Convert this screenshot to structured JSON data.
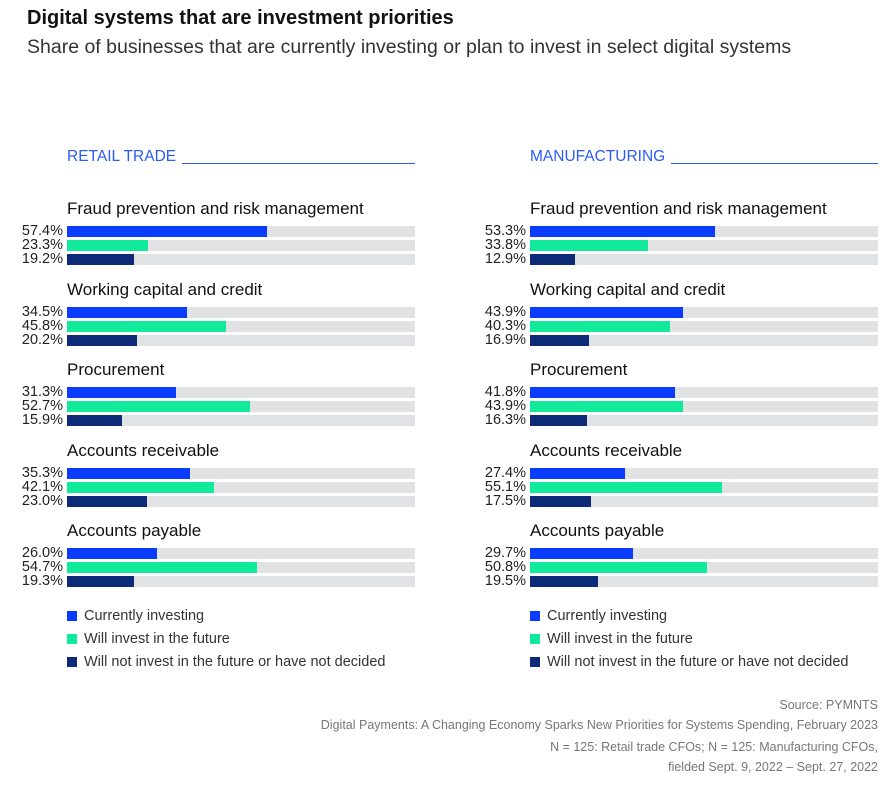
{
  "title": "Digital systems that are investment priorities",
  "subtitle": "Share of businesses that are currently investing or plan to invest in select digital systems",
  "colors": {
    "currently": "#0a3cff",
    "future": "#11ea9a",
    "not": "#0c2a78",
    "track": "#e1e2e4",
    "accent": "#2a5bf5"
  },
  "chart_data": [
    {
      "type": "bar",
      "title": "RETAIL TRADE",
      "categories": [
        "Fraud prevention and risk management",
        "Working capital and credit",
        "Procurement",
        "Accounts receivable",
        "Accounts payable"
      ],
      "xlim": [
        0,
        100
      ],
      "series": [
        {
          "name": "Currently investing",
          "values": [
            57.4,
            34.5,
            31.3,
            35.3,
            26.0
          ],
          "labels": [
            "57.4%",
            "34.5%",
            "31.3%",
            "35.3%",
            "26.0%"
          ]
        },
        {
          "name": "Will invest in the future",
          "values": [
            23.3,
            45.8,
            52.7,
            42.1,
            54.7
          ],
          "labels": [
            "23.3%",
            "45.8%",
            "52.7%",
            "42.1%",
            "54.7%"
          ]
        },
        {
          "name": "Will not invest in the future or have not decided",
          "values": [
            19.2,
            20.2,
            15.9,
            23.0,
            19.3
          ],
          "labels": [
            "19.2%",
            "20.2%",
            "15.9%",
            "23.0%",
            "19.3%"
          ]
        }
      ]
    },
    {
      "type": "bar",
      "title": "MANUFACTURING",
      "categories": [
        "Fraud prevention and risk management",
        "Working capital and credit",
        "Procurement",
        "Accounts receivable",
        "Accounts payable"
      ],
      "xlim": [
        0,
        100
      ],
      "series": [
        {
          "name": "Currently investing",
          "values": [
            53.3,
            43.9,
            41.8,
            27.4,
            29.7
          ],
          "labels": [
            "53.3%",
            "43.9%",
            "41.8%",
            "27.4%",
            "29.7%"
          ]
        },
        {
          "name": "Will invest in the future",
          "values": [
            33.8,
            40.3,
            43.9,
            55.1,
            50.8
          ],
          "labels": [
            "33.8%",
            "40.3%",
            "43.9%",
            "55.1%",
            "50.8%"
          ]
        },
        {
          "name": "Will not invest in the future or have not decided",
          "values": [
            12.9,
            16.9,
            16.3,
            17.5,
            19.5
          ],
          "labels": [
            "12.9%",
            "16.9%",
            "16.3%",
            "17.5%",
            "19.5%"
          ]
        }
      ]
    }
  ],
  "source": {
    "line1": "Source: PYMNTS",
    "line2": "Digital Payments: A Changing Economy Sparks New Priorities for Systems Spending, February 2023",
    "line3": "N = 125: Retail trade CFOs; N = 125: Manufacturing CFOs,",
    "line4": "fielded Sept. 9, 2022 – Sept. 27, 2022"
  }
}
